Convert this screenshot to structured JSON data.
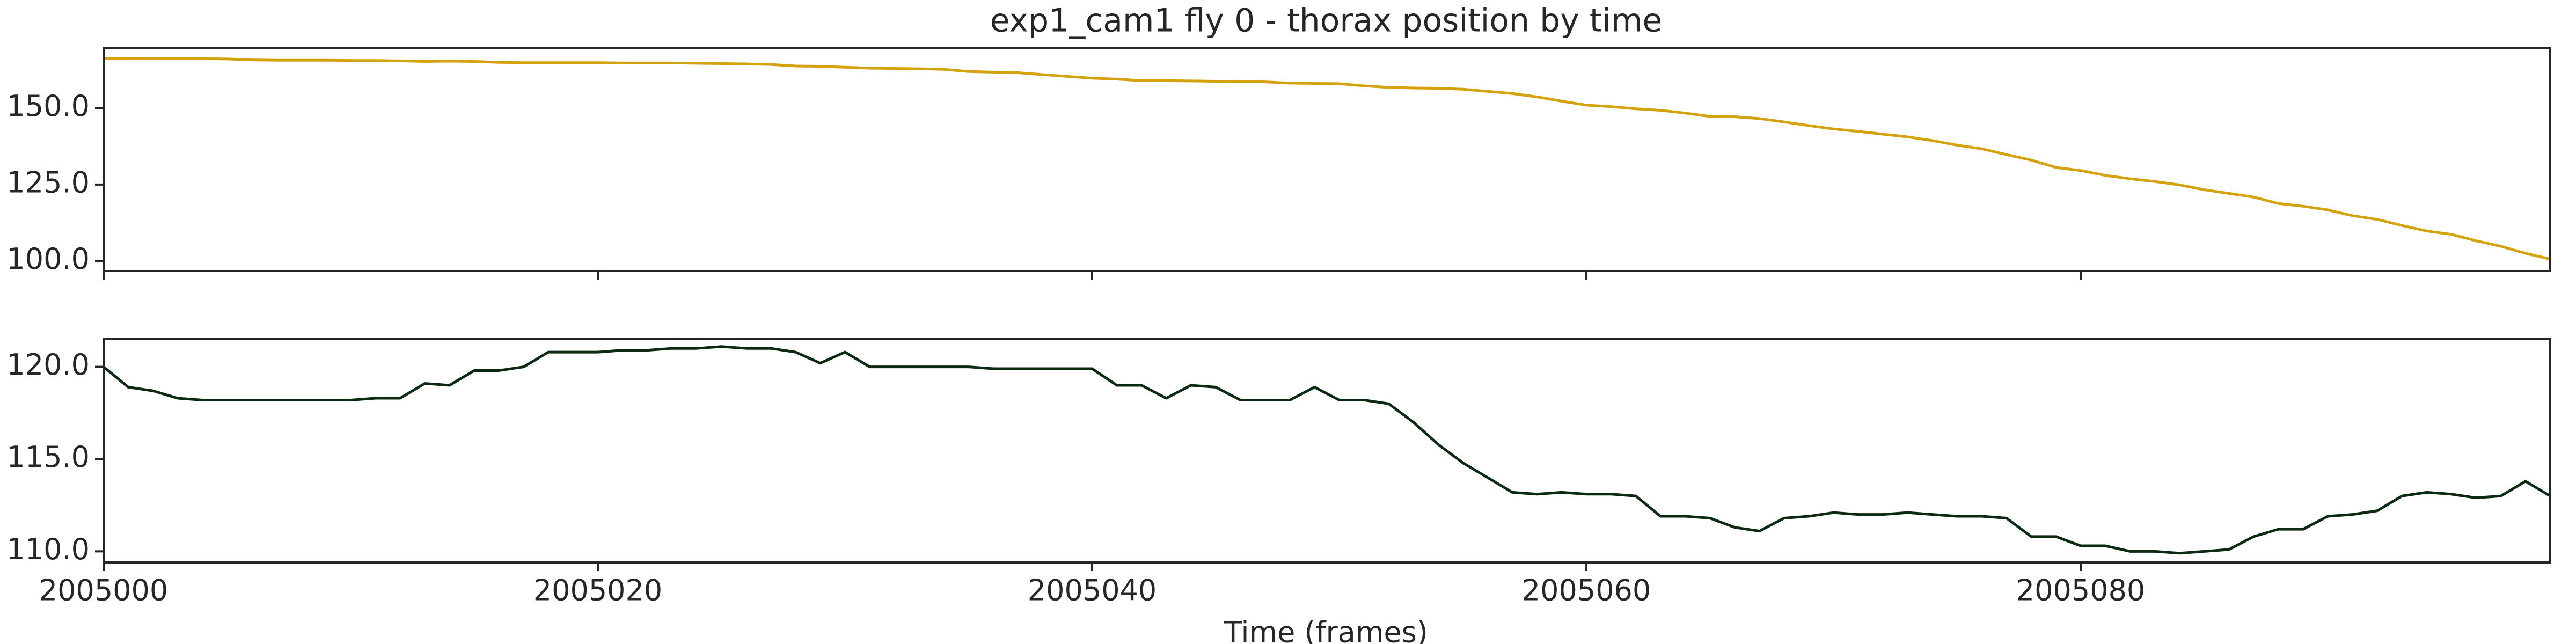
{
  "chart_data": [
    {
      "type": "line",
      "title": "exp1_cam1 fly 0 - thorax position by time",
      "x": [
        2005000,
        2005001,
        2005002,
        2005003,
        2005004,
        2005005,
        2005006,
        2005007,
        2005008,
        2005009,
        2005010,
        2005011,
        2005012,
        2005013,
        2005014,
        2005015,
        2005016,
        2005017,
        2005018,
        2005019,
        2005020,
        2005021,
        2005022,
        2005023,
        2005024,
        2005025,
        2005026,
        2005027,
        2005028,
        2005029,
        2005030,
        2005031,
        2005032,
        2005033,
        2005034,
        2005035,
        2005036,
        2005037,
        2005038,
        2005039,
        2005040,
        2005041,
        2005042,
        2005043,
        2005044,
        2005045,
        2005046,
        2005047,
        2005048,
        2005049,
        2005050,
        2005051,
        2005052,
        2005053,
        2005054,
        2005055,
        2005056,
        2005057,
        2005058,
        2005059,
        2005060,
        2005061,
        2005062,
        2005063,
        2005064,
        2005065,
        2005066,
        2005067,
        2005068,
        2005069,
        2005070,
        2005071,
        2005072,
        2005073,
        2005074,
        2005075,
        2005076,
        2005077,
        2005078,
        2005079,
        2005080,
        2005081,
        2005082,
        2005083,
        2005084,
        2005085,
        2005086,
        2005087,
        2005088,
        2005089,
        2005090,
        2005091,
        2005092,
        2005093,
        2005094,
        2005095,
        2005096,
        2005097,
        2005098,
        2005099
      ],
      "series": [
        {
          "color": "#d4a20c",
          "values": [
            166.3,
            166.3,
            166.2,
            166.2,
            166.2,
            166.1,
            165.8,
            165.7,
            165.7,
            165.7,
            165.6,
            165.6,
            165.5,
            165.3,
            165.4,
            165.3,
            165.0,
            164.9,
            164.9,
            164.9,
            164.9,
            164.8,
            164.8,
            164.8,
            164.7,
            164.6,
            164.5,
            164.3,
            163.8,
            163.7,
            163.4,
            163.1,
            163.0,
            162.9,
            162.7,
            162.0,
            161.8,
            161.6,
            161.0,
            160.4,
            159.8,
            159.5,
            159.0,
            159.0,
            158.9,
            158.8,
            158.7,
            158.6,
            158.2,
            158.1,
            158.0,
            157.3,
            156.8,
            156.6,
            156.5,
            156.2,
            155.5,
            154.8,
            153.7,
            152.3,
            151.0,
            150.5,
            149.8,
            149.3,
            148.4,
            147.3,
            147.2,
            146.6,
            145.5,
            144.3,
            143.2,
            142.4,
            141.5,
            140.6,
            139.4,
            137.9,
            136.7,
            134.8,
            133.0,
            130.6,
            129.6,
            128.0,
            126.9,
            126.0,
            124.9,
            123.3,
            122.1,
            120.9,
            118.8,
            117.9,
            116.7,
            114.8,
            113.6,
            111.6,
            109.8,
            108.7,
            106.6,
            104.8,
            102.5,
            100.6
          ]
        }
      ],
      "xlim": [
        2005000,
        2005099
      ],
      "xticks": [
        2005000,
        2005020,
        2005040,
        2005060,
        2005080
      ],
      "ylim": [
        96.7,
        169.6
      ],
      "yticks": [
        {
          "value": 100,
          "label": "100.0"
        },
        {
          "value": 125,
          "label": "125.0"
        },
        {
          "value": 150,
          "label": "150.0"
        }
      ]
    },
    {
      "type": "line",
      "xlabel": "Time (frames)",
      "x": [
        2005000,
        2005001,
        2005002,
        2005003,
        2005004,
        2005005,
        2005006,
        2005007,
        2005008,
        2005009,
        2005010,
        2005011,
        2005012,
        2005013,
        2005014,
        2005015,
        2005016,
        2005017,
        2005018,
        2005019,
        2005020,
        2005021,
        2005022,
        2005023,
        2005024,
        2005025,
        2005026,
        2005027,
        2005028,
        2005029,
        2005030,
        2005031,
        2005032,
        2005033,
        2005034,
        2005035,
        2005036,
        2005037,
        2005038,
        2005039,
        2005040,
        2005041,
        2005042,
        2005043,
        2005044,
        2005045,
        2005046,
        2005047,
        2005048,
        2005049,
        2005050,
        2005051,
        2005052,
        2005053,
        2005054,
        2005055,
        2005056,
        2005057,
        2005058,
        2005059,
        2005060,
        2005061,
        2005062,
        2005063,
        2005064,
        2005065,
        2005066,
        2005067,
        2005068,
        2005069,
        2005070,
        2005071,
        2005072,
        2005073,
        2005074,
        2005075,
        2005076,
        2005077,
        2005078,
        2005079,
        2005080,
        2005081,
        2005082,
        2005083,
        2005084,
        2005085,
        2005086,
        2005087,
        2005088,
        2005089,
        2005090,
        2005091,
        2005092,
        2005093,
        2005094,
        2005095,
        2005096,
        2005097,
        2005098,
        2005099
      ],
      "series": [
        {
          "color": "#0c2a12",
          "values": [
            120.0,
            118.9,
            118.7,
            118.3,
            118.2,
            118.2,
            118.2,
            118.2,
            118.2,
            118.2,
            118.2,
            118.3,
            118.3,
            119.1,
            119.0,
            119.8,
            119.8,
            120.0,
            120.8,
            120.8,
            120.8,
            120.9,
            120.9,
            121.0,
            121.0,
            121.1,
            121.0,
            121.0,
            120.8,
            120.2,
            120.8,
            120.0,
            120.0,
            120.0,
            120.0,
            120.0,
            119.9,
            119.9,
            119.9,
            119.9,
            119.9,
            119.0,
            119.0,
            118.3,
            119.0,
            118.9,
            118.2,
            118.2,
            118.2,
            118.9,
            118.2,
            118.2,
            118.0,
            117.0,
            115.8,
            114.8,
            114.0,
            113.2,
            113.1,
            113.2,
            113.1,
            113.1,
            113.0,
            111.9,
            111.9,
            111.8,
            111.3,
            111.1,
            111.8,
            111.9,
            112.1,
            112.0,
            112.0,
            112.1,
            112.0,
            111.9,
            111.9,
            111.8,
            110.8,
            110.8,
            110.3,
            110.3,
            110.0,
            110.0,
            109.9,
            110.0,
            110.1,
            110.8,
            111.2,
            111.2,
            111.9,
            112.0,
            112.2,
            113.0,
            113.2,
            113.1,
            112.9,
            113.0,
            113.8,
            113.0
          ]
        }
      ],
      "xlim": [
        2005000,
        2005099
      ],
      "xticks": [
        2005000,
        2005020,
        2005040,
        2005060,
        2005080
      ],
      "ylim": [
        109.4,
        121.5
      ],
      "yticks": [
        {
          "value": 110,
          "label": "110.0"
        },
        {
          "value": 115,
          "label": "115.0"
        },
        {
          "value": 120,
          "label": "120.0"
        }
      ]
    }
  ]
}
